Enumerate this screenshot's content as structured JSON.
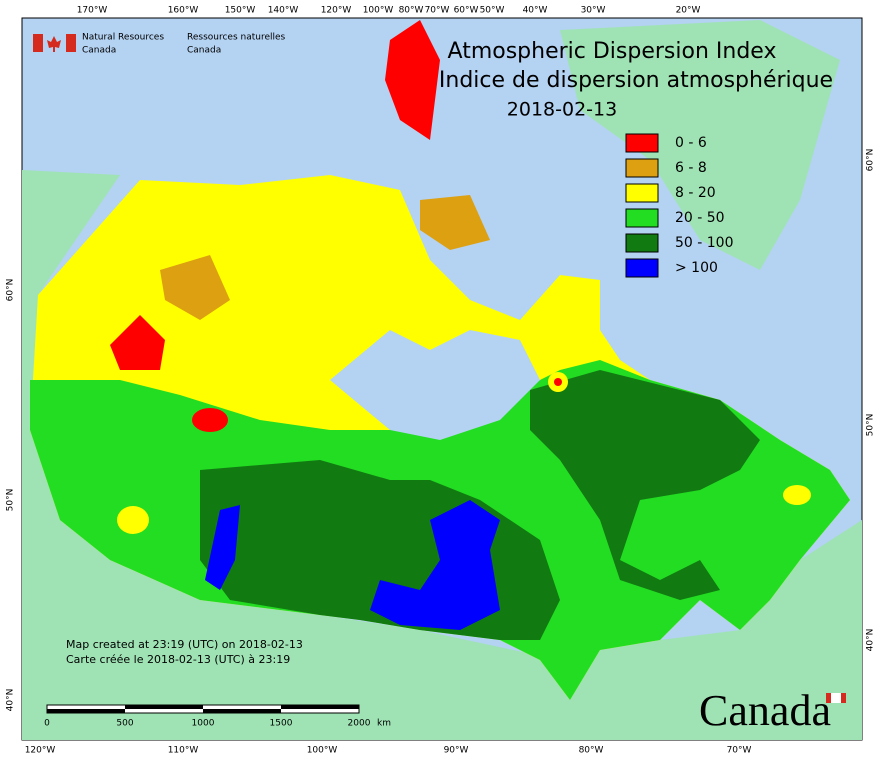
{
  "header": {
    "agency_en": "Natural Resources",
    "agency_en_2": "Canada",
    "agency_fr": "Ressources naturelles",
    "agency_fr_2": "Canada"
  },
  "title": {
    "line1": "Atmospheric Dispersion Index",
    "line2": "Indice de dispersion atmosphérique",
    "date": "2018-02-13"
  },
  "legend": [
    {
      "label": "0 - 6",
      "color": "#ff0000"
    },
    {
      "label": "6 - 8",
      "color": "#dca010"
    },
    {
      "label": "8 - 20",
      "color": "#ffff00"
    },
    {
      "label": "20 - 50",
      "color": "#22dd22"
    },
    {
      "label": "50 - 100",
      "color": "#117a11"
    },
    {
      "label": "> 100",
      "color": "#0000ff"
    }
  ],
  "top_longitudes": [
    "170°W",
    "160°W",
    "150°W",
    "140°W",
    "120°W",
    "100°W",
    "80°W",
    "70°W",
    "60°W",
    "50°W",
    "40°W",
    "30°W",
    "20°W"
  ],
  "bottom_longitudes": [
    "120°W",
    "110°W",
    "100°W",
    "90°W",
    "80°W",
    "70°W"
  ],
  "left_latitudes": [
    "60°N",
    "50°N",
    "40°N"
  ],
  "right_latitudes": [
    "60°N",
    "50°N",
    "40°N"
  ],
  "scale_bar": {
    "labels": [
      "0",
      "500",
      "1000",
      "1500",
      "2000"
    ],
    "unit": "km"
  },
  "footer": {
    "created_en": "Map created at 23:19 (UTC) on 2018-02-13",
    "created_fr": "Carte créée le 2018-02-13 (UTC) à 23:19"
  },
  "wordmark": "Canada"
}
